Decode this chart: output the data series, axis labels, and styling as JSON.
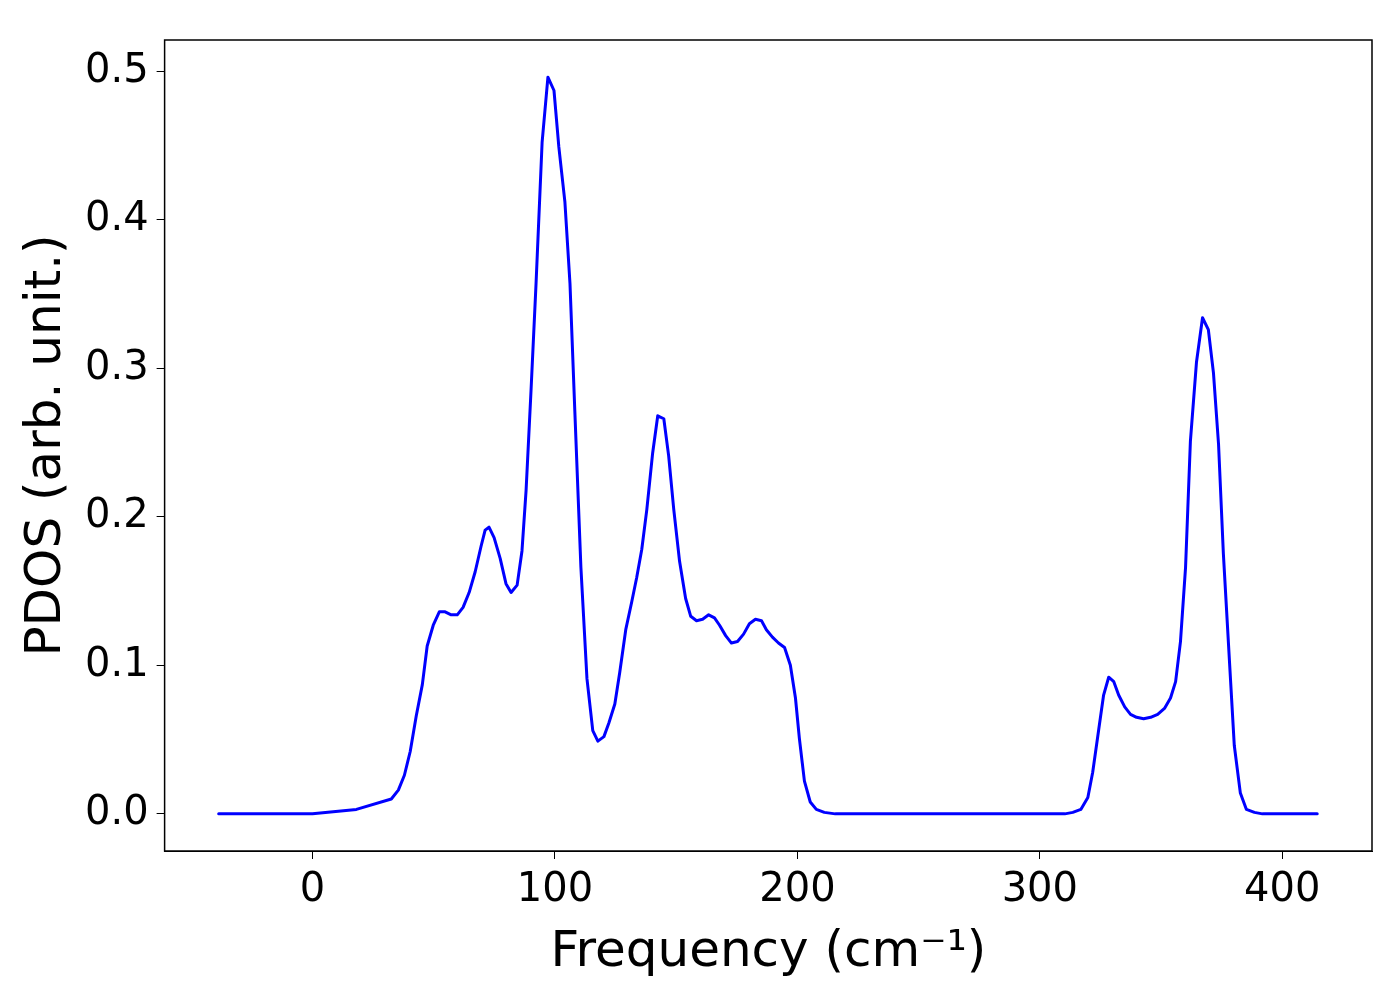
{
  "chart_data": {
    "type": "line",
    "xlabel": "Frequency (cm⁻¹)",
    "ylabel": "PDOS (arb. unit.)",
    "xlim": [
      -61,
      437
    ],
    "xticks": [
      0,
      100,
      200,
      300,
      400
    ],
    "ylim": [
      -0.025,
      0.521
    ],
    "yticks": [
      {
        "value": 0,
        "label": "0.0"
      },
      0.1,
      0.2,
      0.3,
      0.4,
      0.5
    ],
    "grid": false,
    "legend": false,
    "marker": "none",
    "line_style": "solid",
    "series": [
      {
        "color": "#0000ff",
        "x": [
          -38.7,
          0,
          18.1,
          32.5,
          35.4,
          37.9,
          40.3,
          42.8,
          45.3,
          47.3,
          49.8,
          52.3,
          54.7,
          57.2,
          59.7,
          62.1,
          64.6,
          67.1,
          69.5,
          71.2,
          72.8,
          74.9,
          77.4,
          79.8,
          81.9,
          84.4,
          86.4,
          88.1,
          90.1,
          92.2,
          94.7,
          97.1,
          99.6,
          101.6,
          104.1,
          106.2,
          108.2,
          110.7,
          113.2,
          115.6,
          117.7,
          120.2,
          122.2,
          124.7,
          126.7,
          129.2,
          131.7,
          133.7,
          135.8,
          137.9,
          140.3,
          142.4,
          144.9,
          146.9,
          149.0,
          151.4,
          153.9,
          156.0,
          158.4,
          160.9,
          163.4,
          165.8,
          167.9,
          170.4,
          172.8,
          175.3,
          177.8,
          180.2,
          182.7,
          185.2,
          187.2,
          189.7,
          192.2,
          194.7,
          197.1,
          199.2,
          200.8,
          202.9,
          205.3,
          207.8,
          211.1,
          215.6,
          310.3,
          313.6,
          316.9,
          319.8,
          321.8,
          324.3,
          326.3,
          328.4,
          330.5,
          332.5,
          335.0,
          337.4,
          339.9,
          342.8,
          345.7,
          348.6,
          351.4,
          353.9,
          356.0,
          358.0,
          360.1,
          362.1,
          364.6,
          367.1,
          369.5,
          371.6,
          373.7,
          375.7,
          378.2,
          380.2,
          382.7,
          385.2,
          388.5,
          391.8,
          414.4
        ],
        "values": [
          0,
          0,
          0.003,
          0.01,
          0.016,
          0.026,
          0.042,
          0.066,
          0.087,
          0.113,
          0.127,
          0.136,
          0.136,
          0.134,
          0.134,
          0.139,
          0.149,
          0.163,
          0.18,
          0.191,
          0.193,
          0.186,
          0.172,
          0.155,
          0.149,
          0.154,
          0.177,
          0.218,
          0.284,
          0.357,
          0.452,
          0.496,
          0.487,
          0.449,
          0.412,
          0.357,
          0.271,
          0.166,
          0.091,
          0.056,
          0.049,
          0.052,
          0.061,
          0.074,
          0.095,
          0.124,
          0.143,
          0.159,
          0.178,
          0.205,
          0.243,
          0.268,
          0.266,
          0.241,
          0.205,
          0.17,
          0.145,
          0.133,
          0.13,
          0.131,
          0.134,
          0.132,
          0.127,
          0.12,
          0.115,
          0.116,
          0.121,
          0.128,
          0.131,
          0.13,
          0.124,
          0.119,
          0.115,
          0.112,
          0.1,
          0.078,
          0.051,
          0.022,
          0.008,
          0.003,
          0.001,
          0,
          0,
          0.001,
          0.003,
          0.011,
          0.028,
          0.057,
          0.08,
          0.092,
          0.089,
          0.08,
          0.072,
          0.067,
          0.065,
          0.064,
          0.065,
          0.067,
          0.071,
          0.078,
          0.089,
          0.116,
          0.166,
          0.251,
          0.304,
          0.334,
          0.326,
          0.297,
          0.249,
          0.175,
          0.103,
          0.046,
          0.014,
          0.003,
          0.001,
          0,
          0
        ]
      }
    ]
  }
}
